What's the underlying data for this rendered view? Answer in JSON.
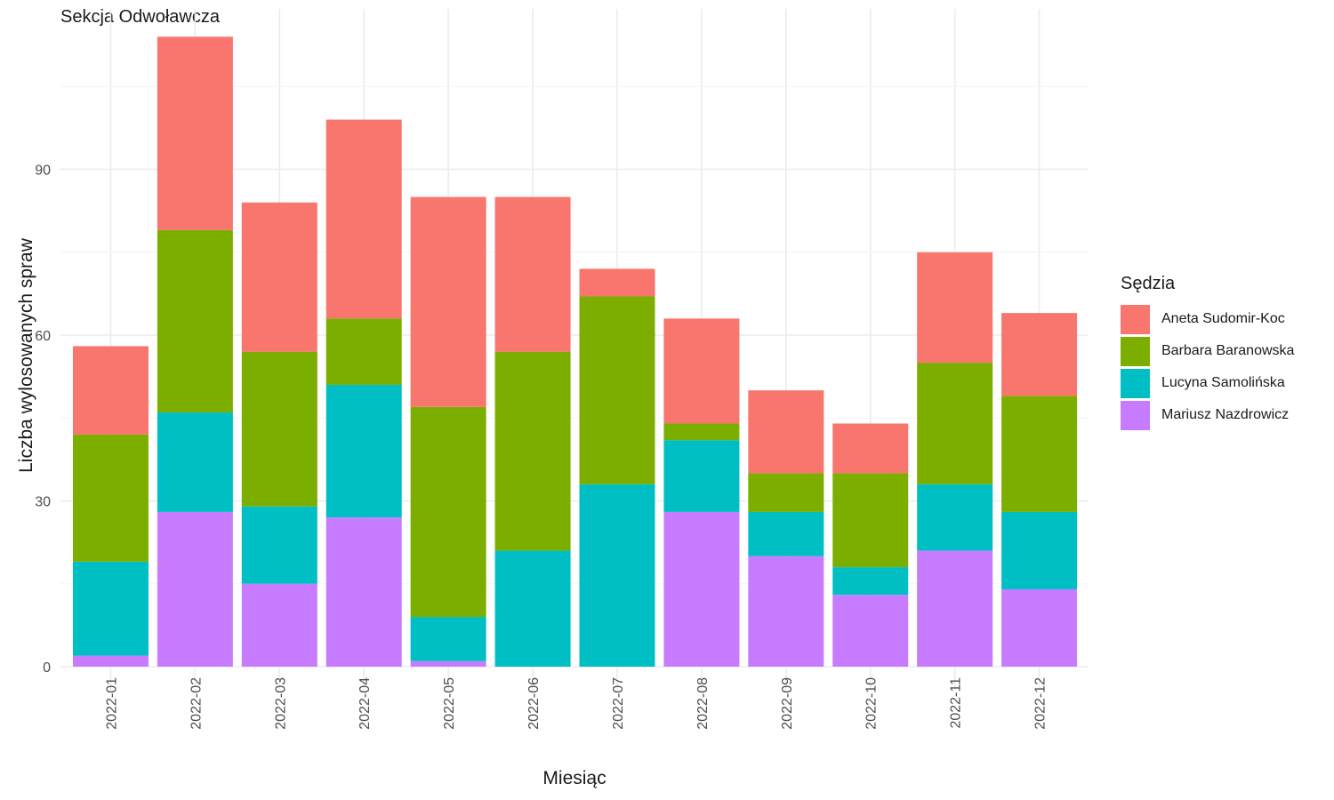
{
  "chart_data": {
    "type": "bar",
    "stacked": true,
    "title": "Sekcja Odwoławcza",
    "xlabel": "Miesiąc",
    "ylabel": "Liczba wylosowanych spraw",
    "legend_title": "Sędzia",
    "legend_position": "right",
    "grid": true,
    "ylim": [
      0,
      117
    ],
    "yticks": [
      0,
      30,
      60,
      90
    ],
    "categories": [
      "2022-01",
      "2022-02",
      "2022-03",
      "2022-04",
      "2022-05",
      "2022-06",
      "2022-07",
      "2022-08",
      "2022-09",
      "2022-10",
      "2022-11",
      "2022-12"
    ],
    "series": [
      {
        "name": "Mariusz Nazdrowicz",
        "color": "#C77CFF",
        "values": [
          2,
          28,
          15,
          27,
          1,
          0,
          0,
          28,
          20,
          13,
          21,
          14
        ]
      },
      {
        "name": "Lucyna Samolińska",
        "color": "#00BFC4",
        "values": [
          17,
          18,
          14,
          24,
          8,
          21,
          33,
          13,
          8,
          5,
          12,
          14
        ]
      },
      {
        "name": "Barbara Baranowska",
        "color": "#7CAE00",
        "values": [
          23,
          33,
          28,
          12,
          38,
          36,
          34,
          3,
          7,
          17,
          22,
          21
        ]
      },
      {
        "name": "Aneta Sudomir-Koc",
        "color": "#F8766D",
        "values": [
          16,
          35,
          27,
          36,
          38,
          28,
          5,
          19,
          15,
          9,
          20,
          15
        ]
      }
    ],
    "legend_order": [
      "Aneta Sudomir-Koc",
      "Barbara Baranowska",
      "Lucyna Samolińska",
      "Mariusz Nazdrowicz"
    ]
  }
}
